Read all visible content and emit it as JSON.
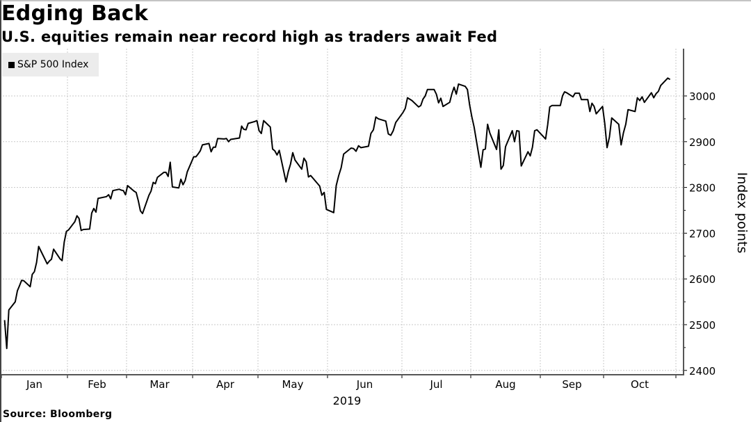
{
  "chart_data": {
    "type": "line",
    "title": "Edging Back",
    "subtitle": "U.S. equities remain near record high as traders await Fed",
    "source": "Source: Bloomberg",
    "ylabel": "Index points",
    "xlabel": "2019",
    "ylim": [
      2380,
      3100
    ],
    "yticks": [
      2400,
      2500,
      2600,
      2700,
      2800,
      2900,
      3000
    ],
    "ytick_labels": [
      "2400",
      "2500",
      "2600",
      "2700",
      "2800",
      "2900",
      "3000"
    ],
    "xtick_labels": [
      "Jan",
      "Feb",
      "Mar",
      "Apr",
      "May",
      "Jun",
      "Jul",
      "Aug",
      "Sep",
      "Oct"
    ],
    "y_axis_side": "right",
    "grid": true,
    "legend_position": "top-left",
    "series": [
      {
        "name": "S&P 500 Index",
        "color": "#000000",
        "points": [
          [
            "2019-01-02",
            2510
          ],
          [
            "2019-01-03",
            2448
          ],
          [
            "2019-01-04",
            2532
          ],
          [
            "2019-01-07",
            2550
          ],
          [
            "2019-01-08",
            2574
          ],
          [
            "2019-01-09",
            2585
          ],
          [
            "2019-01-10",
            2597
          ],
          [
            "2019-01-11",
            2596
          ],
          [
            "2019-01-14",
            2583
          ],
          [
            "2019-01-15",
            2610
          ],
          [
            "2019-01-16",
            2616
          ],
          [
            "2019-01-17",
            2636
          ],
          [
            "2019-01-18",
            2671
          ],
          [
            "2019-01-22",
            2633
          ],
          [
            "2019-01-23",
            2639
          ],
          [
            "2019-01-24",
            2643
          ],
          [
            "2019-01-25",
            2665
          ],
          [
            "2019-01-28",
            2644
          ],
          [
            "2019-01-29",
            2640
          ],
          [
            "2019-01-30",
            2681
          ],
          [
            "2019-01-31",
            2704
          ],
          [
            "2019-02-01",
            2707
          ],
          [
            "2019-02-04",
            2725
          ],
          [
            "2019-02-05",
            2738
          ],
          [
            "2019-02-06",
            2732
          ],
          [
            "2019-02-07",
            2706
          ],
          [
            "2019-02-08",
            2708
          ],
          [
            "2019-02-11",
            2709
          ],
          [
            "2019-02-12",
            2744
          ],
          [
            "2019-02-13",
            2754
          ],
          [
            "2019-02-14",
            2746
          ],
          [
            "2019-02-15",
            2776
          ],
          [
            "2019-02-19",
            2780
          ],
          [
            "2019-02-20",
            2784
          ],
          [
            "2019-02-21",
            2775
          ],
          [
            "2019-02-22",
            2793
          ],
          [
            "2019-02-25",
            2796
          ],
          [
            "2019-02-26",
            2794
          ],
          [
            "2019-02-27",
            2793
          ],
          [
            "2019-02-28",
            2784
          ],
          [
            "2019-03-01",
            2804
          ],
          [
            "2019-03-04",
            2792
          ],
          [
            "2019-03-05",
            2789
          ],
          [
            "2019-03-06",
            2771
          ],
          [
            "2019-03-07",
            2749
          ],
          [
            "2019-03-08",
            2743
          ],
          [
            "2019-03-11",
            2783
          ],
          [
            "2019-03-12",
            2792
          ],
          [
            "2019-03-13",
            2811
          ],
          [
            "2019-03-14",
            2808
          ],
          [
            "2019-03-15",
            2822
          ],
          [
            "2019-03-18",
            2833
          ],
          [
            "2019-03-19",
            2833
          ],
          [
            "2019-03-20",
            2824
          ],
          [
            "2019-03-21",
            2855
          ],
          [
            "2019-03-22",
            2801
          ],
          [
            "2019-03-25",
            2799
          ],
          [
            "2019-03-26",
            2818
          ],
          [
            "2019-03-27",
            2806
          ],
          [
            "2019-03-28",
            2815
          ],
          [
            "2019-03-29",
            2834
          ],
          [
            "2019-04-01",
            2867
          ],
          [
            "2019-04-02",
            2867
          ],
          [
            "2019-04-03",
            2873
          ],
          [
            "2019-04-04",
            2880
          ],
          [
            "2019-04-05",
            2893
          ],
          [
            "2019-04-08",
            2896
          ],
          [
            "2019-04-09",
            2878
          ],
          [
            "2019-04-10",
            2888
          ],
          [
            "2019-04-11",
            2888
          ],
          [
            "2019-04-12",
            2907
          ],
          [
            "2019-04-15",
            2906
          ],
          [
            "2019-04-16",
            2907
          ],
          [
            "2019-04-17",
            2900
          ],
          [
            "2019-04-18",
            2905
          ],
          [
            "2019-04-22",
            2908
          ],
          [
            "2019-04-23",
            2934
          ],
          [
            "2019-04-24",
            2927
          ],
          [
            "2019-04-25",
            2926
          ],
          [
            "2019-04-26",
            2940
          ],
          [
            "2019-04-29",
            2944
          ],
          [
            "2019-04-30",
            2946
          ],
          [
            "2019-05-01",
            2924
          ],
          [
            "2019-05-02",
            2918
          ],
          [
            "2019-05-03",
            2946
          ],
          [
            "2019-05-06",
            2932
          ],
          [
            "2019-05-07",
            2884
          ],
          [
            "2019-05-08",
            2880
          ],
          [
            "2019-05-09",
            2871
          ],
          [
            "2019-05-10",
            2881
          ],
          [
            "2019-05-13",
            2812
          ],
          [
            "2019-05-14",
            2834
          ],
          [
            "2019-05-15",
            2851
          ],
          [
            "2019-05-16",
            2876
          ],
          [
            "2019-05-17",
            2860
          ],
          [
            "2019-05-20",
            2840
          ],
          [
            "2019-05-21",
            2864
          ],
          [
            "2019-05-22",
            2856
          ],
          [
            "2019-05-23",
            2823
          ],
          [
            "2019-05-24",
            2826
          ],
          [
            "2019-05-28",
            2803
          ],
          [
            "2019-05-29",
            2783
          ],
          [
            "2019-05-30",
            2789
          ],
          [
            "2019-05-31",
            2752
          ],
          [
            "2019-06-03",
            2745
          ],
          [
            "2019-06-04",
            2804
          ],
          [
            "2019-06-05",
            2826
          ],
          [
            "2019-06-06",
            2843
          ],
          [
            "2019-06-07",
            2873
          ],
          [
            "2019-06-10",
            2886
          ],
          [
            "2019-06-11",
            2885
          ],
          [
            "2019-06-12",
            2879
          ],
          [
            "2019-06-13",
            2891
          ],
          [
            "2019-06-14",
            2887
          ],
          [
            "2019-06-17",
            2890
          ],
          [
            "2019-06-18",
            2918
          ],
          [
            "2019-06-19",
            2926
          ],
          [
            "2019-06-20",
            2954
          ],
          [
            "2019-06-21",
            2950
          ],
          [
            "2019-06-24",
            2945
          ],
          [
            "2019-06-25",
            2917
          ],
          [
            "2019-06-26",
            2914
          ],
          [
            "2019-06-27",
            2924
          ],
          [
            "2019-06-28",
            2942
          ],
          [
            "2019-07-01",
            2964
          ],
          [
            "2019-07-02",
            2973
          ],
          [
            "2019-07-03",
            2996
          ],
          [
            "2019-07-05",
            2990
          ],
          [
            "2019-07-08",
            2976
          ],
          [
            "2019-07-09",
            2979
          ],
          [
            "2019-07-10",
            2993
          ],
          [
            "2019-07-11",
            3000
          ],
          [
            "2019-07-12",
            3014
          ],
          [
            "2019-07-15",
            3014
          ],
          [
            "2019-07-16",
            3004
          ],
          [
            "2019-07-17",
            2985
          ],
          [
            "2019-07-18",
            2995
          ],
          [
            "2019-07-19",
            2977
          ],
          [
            "2019-07-22",
            2986
          ],
          [
            "2019-07-23",
            3005
          ],
          [
            "2019-07-24",
            3019
          ],
          [
            "2019-07-25",
            3004
          ],
          [
            "2019-07-26",
            3026
          ],
          [
            "2019-07-29",
            3021
          ],
          [
            "2019-07-30",
            3014
          ],
          [
            "2019-07-31",
            2980
          ],
          [
            "2019-08-01",
            2954
          ],
          [
            "2019-08-02",
            2932
          ],
          [
            "2019-08-05",
            2844
          ],
          [
            "2019-08-06",
            2882
          ],
          [
            "2019-08-07",
            2884
          ],
          [
            "2019-08-08",
            2938
          ],
          [
            "2019-08-09",
            2919
          ],
          [
            "2019-08-12",
            2883
          ],
          [
            "2019-08-13",
            2926
          ],
          [
            "2019-08-14",
            2840
          ],
          [
            "2019-08-15",
            2848
          ],
          [
            "2019-08-16",
            2889
          ],
          [
            "2019-08-19",
            2924
          ],
          [
            "2019-08-20",
            2900
          ],
          [
            "2019-08-21",
            2924
          ],
          [
            "2019-08-22",
            2923
          ],
          [
            "2019-08-23",
            2847
          ],
          [
            "2019-08-26",
            2878
          ],
          [
            "2019-08-27",
            2869
          ],
          [
            "2019-08-28",
            2888
          ],
          [
            "2019-08-29",
            2924
          ],
          [
            "2019-08-30",
            2926
          ],
          [
            "2019-09-03",
            2906
          ],
          [
            "2019-09-04",
            2937
          ],
          [
            "2019-09-05",
            2976
          ],
          [
            "2019-09-06",
            2979
          ],
          [
            "2019-09-09",
            2979
          ],
          [
            "2019-09-10",
            2979
          ],
          [
            "2019-09-11",
            3000
          ],
          [
            "2019-09-12",
            3009
          ],
          [
            "2019-09-13",
            3007
          ],
          [
            "2019-09-16",
            2998
          ],
          [
            "2019-09-17",
            3006
          ],
          [
            "2019-09-18",
            3006
          ],
          [
            "2019-09-19",
            3006
          ],
          [
            "2019-09-20",
            2992
          ],
          [
            "2019-09-23",
            2992
          ],
          [
            "2019-09-24",
            2966
          ],
          [
            "2019-09-25",
            2984
          ],
          [
            "2019-09-26",
            2977
          ],
          [
            "2019-09-27",
            2961
          ],
          [
            "2019-09-30",
            2977
          ],
          [
            "2019-10-01",
            2940
          ],
          [
            "2019-10-02",
            2887
          ],
          [
            "2019-10-03",
            2910
          ],
          [
            "2019-10-04",
            2952
          ],
          [
            "2019-10-07",
            2938
          ],
          [
            "2019-10-08",
            2893
          ],
          [
            "2019-10-09",
            2919
          ],
          [
            "2019-10-10",
            2938
          ],
          [
            "2019-10-11",
            2970
          ],
          [
            "2019-10-14",
            2966
          ],
          [
            "2019-10-15",
            2996
          ],
          [
            "2019-10-16",
            2990
          ],
          [
            "2019-10-17",
            2998
          ],
          [
            "2019-10-18",
            2986
          ],
          [
            "2019-10-21",
            3007
          ],
          [
            "2019-10-22",
            2996
          ],
          [
            "2019-10-23",
            3005
          ],
          [
            "2019-10-24",
            3010
          ],
          [
            "2019-10-25",
            3023
          ],
          [
            "2019-10-28",
            3039
          ],
          [
            "2019-10-29",
            3036
          ]
        ]
      }
    ]
  }
}
